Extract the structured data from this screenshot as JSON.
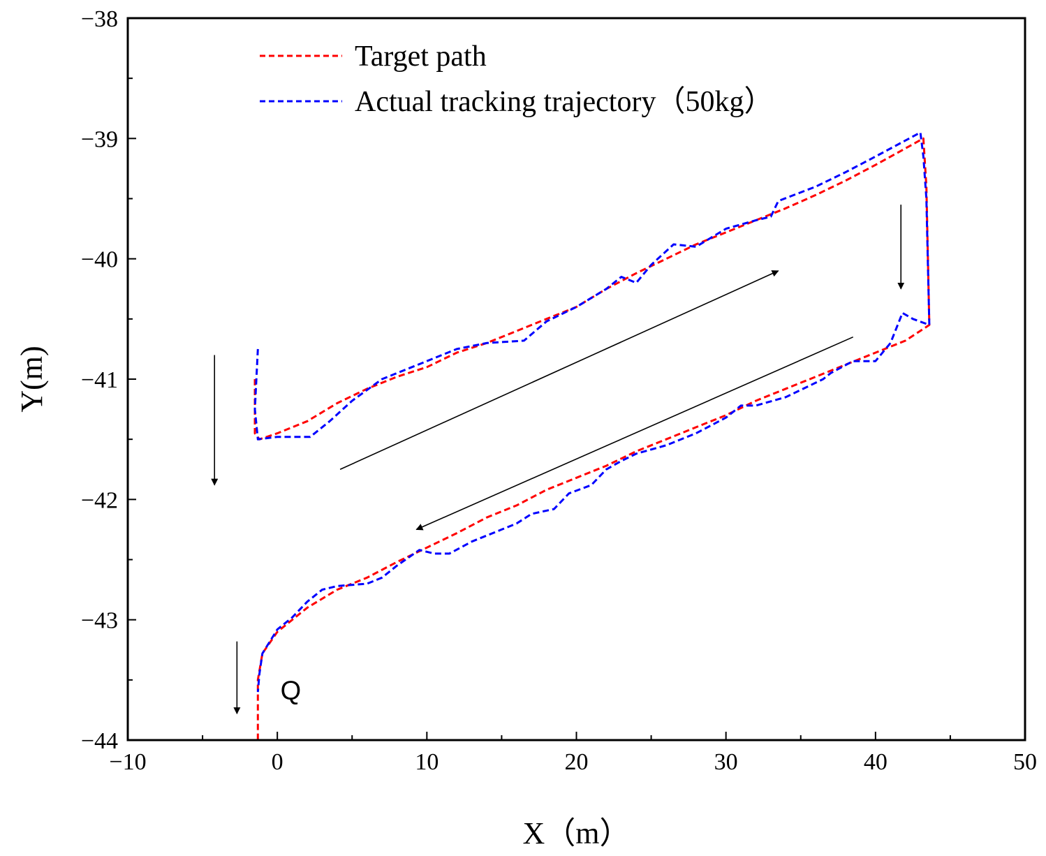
{
  "chart_data": {
    "type": "line",
    "title": "",
    "xlabel": "X（m）",
    "ylabel": "Y(m)",
    "xlim": [
      -10,
      50
    ],
    "ylim": [
      -44,
      -38
    ],
    "x_ticks": [
      -10,
      0,
      10,
      20,
      30,
      40,
      50
    ],
    "x_tick_labels": [
      "−10",
      "0",
      "10",
      "20",
      "30",
      "40",
      "50"
    ],
    "y_ticks": [
      -38,
      -39,
      -40,
      -41,
      -42,
      -43,
      -44
    ],
    "y_tick_labels": [
      "−38",
      "−39",
      "−40",
      "−41",
      "−42",
      "−43",
      "−44"
    ],
    "legend_position": "top-left",
    "series": [
      {
        "name": "Target path",
        "color": "#ff0000",
        "style": "dashed",
        "x": [
          -1.5,
          -1.5,
          -1.2,
          0,
          2,
          4,
          6,
          8,
          10,
          12,
          14,
          16,
          18,
          20,
          22,
          24,
          26,
          28,
          30,
          32,
          34,
          36,
          38,
          40,
          43.2,
          43.4,
          43.6,
          42,
          40,
          38,
          36,
          34,
          32,
          30,
          28,
          26,
          24,
          22,
          20,
          18,
          16,
          14,
          12,
          10,
          8,
          6,
          4,
          2,
          0,
          -1,
          -1.3,
          -1.3,
          -1.3
        ],
        "y": [
          -41.0,
          -41.45,
          -41.5,
          -41.45,
          -41.35,
          -41.2,
          -41.08,
          -40.98,
          -40.9,
          -40.78,
          -40.7,
          -40.6,
          -40.5,
          -40.4,
          -40.25,
          -40.12,
          -40.0,
          -39.88,
          -39.78,
          -39.68,
          -39.58,
          -39.47,
          -39.35,
          -39.22,
          -39.0,
          -39.4,
          -40.55,
          -40.68,
          -40.78,
          -40.88,
          -40.98,
          -41.08,
          -41.18,
          -41.3,
          -41.4,
          -41.5,
          -41.6,
          -41.72,
          -41.82,
          -41.92,
          -42.05,
          -42.15,
          -42.28,
          -42.4,
          -42.52,
          -42.65,
          -42.75,
          -42.9,
          -43.1,
          -43.28,
          -43.5,
          -43.8,
          -44.0
        ]
      },
      {
        "name": "Actual tracking trajectory（50kg）",
        "color": "#0000ff",
        "style": "dashed",
        "x": [
          -1.3,
          -1.5,
          -1.3,
          0,
          2.2,
          3.5,
          5,
          7,
          10,
          12,
          14,
          16.5,
          18,
          20,
          22,
          23,
          24,
          25,
          26.5,
          28,
          30,
          32,
          33,
          33.5,
          36,
          38,
          40,
          43,
          43.2,
          43.4,
          43.6,
          42.5,
          41.8,
          41,
          40,
          38.5,
          37,
          36.5,
          34,
          32,
          31,
          30,
          28,
          26,
          24,
          23,
          22,
          21,
          19.5,
          18.5,
          17,
          16,
          15,
          13,
          11.5,
          10.5,
          9.5,
          8,
          7,
          6,
          4,
          3,
          2,
          1,
          0,
          -0.5,
          -1,
          -1.2,
          -1.3
        ],
        "y": [
          -40.75,
          -41.25,
          -41.5,
          -41.48,
          -41.48,
          -41.35,
          -41.18,
          -41.0,
          -40.85,
          -40.75,
          -40.7,
          -40.68,
          -40.52,
          -40.4,
          -40.25,
          -40.15,
          -40.2,
          -40.05,
          -39.88,
          -39.9,
          -39.75,
          -39.68,
          -39.65,
          -39.52,
          -39.4,
          -39.28,
          -39.15,
          -38.95,
          -39.15,
          -39.5,
          -40.55,
          -40.5,
          -40.45,
          -40.7,
          -40.85,
          -40.85,
          -40.95,
          -41.0,
          -41.15,
          -41.22,
          -41.22,
          -41.32,
          -41.45,
          -41.55,
          -41.62,
          -41.68,
          -41.75,
          -41.88,
          -41.95,
          -42.08,
          -42.12,
          -42.2,
          -42.25,
          -42.35,
          -42.45,
          -42.45,
          -42.42,
          -42.55,
          -42.65,
          -42.7,
          -42.72,
          -42.75,
          -42.85,
          -42.98,
          -43.08,
          -43.18,
          -43.28,
          -43.45,
          -43.6
        ]
      }
    ],
    "annotations": [
      {
        "type": "arrow",
        "label": "arrow-down-left",
        "from": [
          -4.2,
          -40.8
        ],
        "to": [
          -4.2,
          -41.88
        ]
      },
      {
        "type": "arrow",
        "label": "arrow-diagonal-up",
        "from": [
          4.2,
          -41.75
        ],
        "to": [
          33.5,
          -40.1
        ]
      },
      {
        "type": "arrow",
        "label": "arrow-down-right",
        "from": [
          41.7,
          -39.55
        ],
        "to": [
          41.7,
          -40.25
        ]
      },
      {
        "type": "arrow",
        "label": "arrow-diagonal-down",
        "from": [
          38.5,
          -40.65
        ],
        "to": [
          9.3,
          -42.25
        ]
      },
      {
        "type": "arrow",
        "label": "arrow-down-bottom",
        "from": [
          -2.7,
          -43.18
        ],
        "to": [
          -2.7,
          -43.78
        ]
      },
      {
        "type": "text",
        "label": "start-point-label",
        "text": "Q",
        "at": [
          0.9,
          -43.58
        ]
      }
    ]
  }
}
